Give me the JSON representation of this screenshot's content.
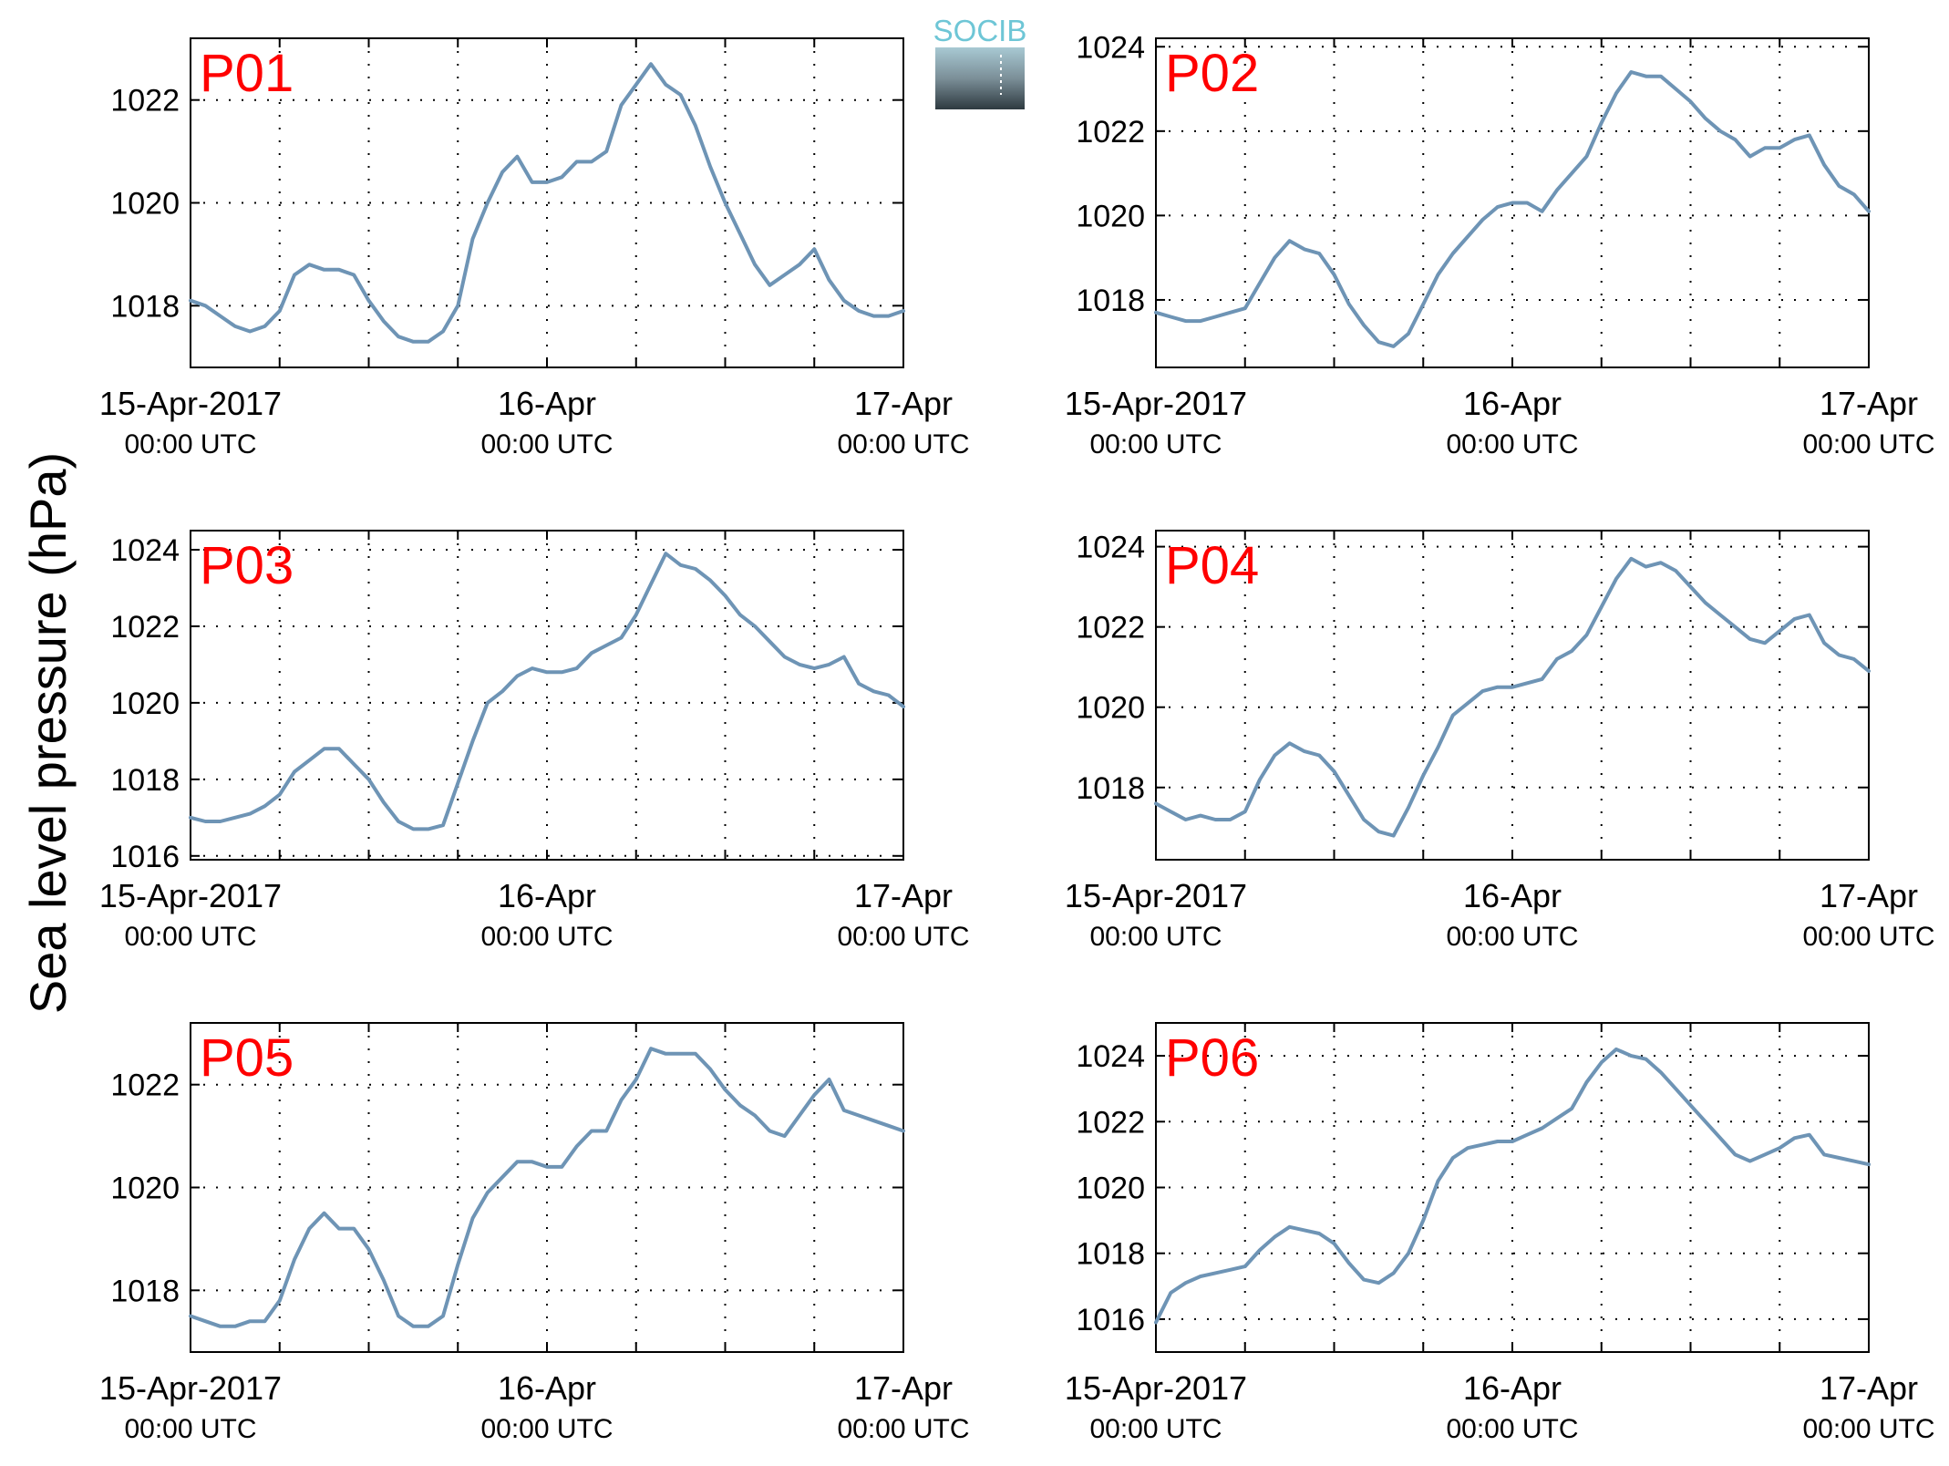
{
  "ylabel": "Sea level pressure (hPa)",
  "logo": {
    "text": "SOCIB",
    "accent": "#6ec6d6"
  },
  "colors": {
    "line": "#6e94b5",
    "label": "#ff0000",
    "grid": "#000000"
  },
  "x_ticks": [
    {
      "x": 0,
      "date": "15-Apr-2017",
      "time": "00:00 UTC"
    },
    {
      "x": 24,
      "date": "16-Apr",
      "time": "00:00 UTC"
    },
    {
      "x": 48,
      "date": "17-Apr",
      "time": "00:00 UTC"
    }
  ],
  "chart_data": [
    {
      "type": "line",
      "label": "P01",
      "xlim": [
        0,
        48
      ],
      "ylim": [
        1016.8,
        1023.2
      ],
      "yticks": [
        1018,
        1020,
        1022
      ],
      "grid": true,
      "series": [
        {
          "x": [
            0,
            1,
            2,
            3,
            4,
            5,
            6,
            7,
            8,
            9,
            10,
            11,
            12,
            13,
            14,
            15,
            16,
            17,
            18,
            19,
            20,
            21,
            22,
            23,
            24,
            25,
            26,
            27,
            28,
            29,
            30,
            31,
            32,
            33,
            34,
            35,
            36,
            37,
            38,
            39,
            40,
            41,
            42,
            43,
            44,
            45,
            46,
            47,
            48
          ],
          "y": [
            1018.1,
            1018.0,
            1017.8,
            1017.6,
            1017.5,
            1017.6,
            1017.9,
            1018.6,
            1018.8,
            1018.7,
            1018.7,
            1018.6,
            1018.1,
            1017.7,
            1017.4,
            1017.3,
            1017.3,
            1017.5,
            1018.0,
            1019.3,
            1020.0,
            1020.6,
            1020.9,
            1020.4,
            1020.4,
            1020.5,
            1020.8,
            1020.8,
            1021.0,
            1021.9,
            1022.3,
            1022.7,
            1022.3,
            1022.1,
            1021.5,
            1020.7,
            1020.0,
            1019.4,
            1018.8,
            1018.4,
            1018.6,
            1018.8,
            1019.1,
            1018.5,
            1018.1,
            1017.9,
            1017.8,
            1017.8,
            1017.9
          ]
        }
      ]
    },
    {
      "type": "line",
      "label": "P02",
      "xlim": [
        0,
        48
      ],
      "ylim": [
        1016.4,
        1024.2
      ],
      "yticks": [
        1018,
        1020,
        1022,
        1024
      ],
      "grid": true,
      "series": [
        {
          "x": [
            0,
            1,
            2,
            3,
            4,
            5,
            6,
            7,
            8,
            9,
            10,
            11,
            12,
            13,
            14,
            15,
            16,
            17,
            18,
            19,
            20,
            21,
            22,
            23,
            24,
            25,
            26,
            27,
            28,
            29,
            30,
            31,
            32,
            33,
            34,
            35,
            36,
            37,
            38,
            39,
            40,
            41,
            42,
            43,
            44,
            45,
            46,
            47,
            48
          ],
          "y": [
            1017.7,
            1017.6,
            1017.5,
            1017.5,
            1017.6,
            1017.7,
            1017.8,
            1018.4,
            1019.0,
            1019.4,
            1019.2,
            1019.1,
            1018.6,
            1017.9,
            1017.4,
            1017.0,
            1016.9,
            1017.2,
            1017.9,
            1018.6,
            1019.1,
            1019.5,
            1019.9,
            1020.2,
            1020.3,
            1020.3,
            1020.1,
            1020.6,
            1021.0,
            1021.4,
            1022.2,
            1022.9,
            1023.4,
            1023.3,
            1023.3,
            1023.0,
            1022.7,
            1022.3,
            1022.0,
            1021.8,
            1021.4,
            1021.6,
            1021.6,
            1021.8,
            1021.9,
            1021.2,
            1020.7,
            1020.5,
            1020.1
          ]
        }
      ]
    },
    {
      "type": "line",
      "label": "P03",
      "xlim": [
        0,
        48
      ],
      "ylim": [
        1015.9,
        1024.5
      ],
      "yticks": [
        1016,
        1018,
        1020,
        1022,
        1024
      ],
      "grid": true,
      "series": [
        {
          "x": [
            0,
            1,
            2,
            3,
            4,
            5,
            6,
            7,
            8,
            9,
            10,
            11,
            12,
            13,
            14,
            15,
            16,
            17,
            18,
            19,
            20,
            21,
            22,
            23,
            24,
            25,
            26,
            27,
            28,
            29,
            30,
            31,
            32,
            33,
            34,
            35,
            36,
            37,
            38,
            39,
            40,
            41,
            42,
            43,
            44,
            45,
            46,
            47,
            48
          ],
          "y": [
            1017.0,
            1016.9,
            1016.9,
            1017.0,
            1017.1,
            1017.3,
            1017.6,
            1018.2,
            1018.5,
            1018.8,
            1018.8,
            1018.4,
            1018.0,
            1017.4,
            1016.9,
            1016.7,
            1016.7,
            1016.8,
            1017.9,
            1019.0,
            1020.0,
            1020.3,
            1020.7,
            1020.9,
            1020.8,
            1020.8,
            1020.9,
            1021.3,
            1021.5,
            1021.7,
            1022.3,
            1023.1,
            1023.9,
            1023.6,
            1023.5,
            1023.2,
            1022.8,
            1022.3,
            1022.0,
            1021.6,
            1021.2,
            1021.0,
            1020.9,
            1021.0,
            1021.2,
            1020.5,
            1020.3,
            1020.2,
            1019.9
          ]
        }
      ]
    },
    {
      "type": "line",
      "label": "P04",
      "xlim": [
        0,
        48
      ],
      "ylim": [
        1016.2,
        1024.4
      ],
      "yticks": [
        1018,
        1020,
        1022,
        1024
      ],
      "grid": true,
      "series": [
        {
          "x": [
            0,
            1,
            2,
            3,
            4,
            5,
            6,
            7,
            8,
            9,
            10,
            11,
            12,
            13,
            14,
            15,
            16,
            17,
            18,
            19,
            20,
            21,
            22,
            23,
            24,
            25,
            26,
            27,
            28,
            29,
            30,
            31,
            32,
            33,
            34,
            35,
            36,
            37,
            38,
            39,
            40,
            41,
            42,
            43,
            44,
            45,
            46,
            47,
            48
          ],
          "y": [
            1017.6,
            1017.4,
            1017.2,
            1017.3,
            1017.2,
            1017.2,
            1017.4,
            1018.2,
            1018.8,
            1019.1,
            1018.9,
            1018.8,
            1018.4,
            1017.8,
            1017.2,
            1016.9,
            1016.8,
            1017.5,
            1018.3,
            1019.0,
            1019.8,
            1020.1,
            1020.4,
            1020.5,
            1020.5,
            1020.6,
            1020.7,
            1021.2,
            1021.4,
            1021.8,
            1022.5,
            1023.2,
            1023.7,
            1023.5,
            1023.6,
            1023.4,
            1023.0,
            1022.6,
            1022.3,
            1022.0,
            1021.7,
            1021.6,
            1021.9,
            1022.2,
            1022.3,
            1021.6,
            1021.3,
            1021.2,
            1020.9
          ]
        }
      ]
    },
    {
      "type": "line",
      "label": "P05",
      "xlim": [
        0,
        48
      ],
      "ylim": [
        1016.8,
        1023.2
      ],
      "yticks": [
        1018,
        1020,
        1022
      ],
      "grid": true,
      "series": [
        {
          "x": [
            0,
            1,
            2,
            3,
            4,
            5,
            6,
            7,
            8,
            9,
            10,
            11,
            12,
            13,
            14,
            15,
            16,
            17,
            18,
            19,
            20,
            21,
            22,
            23,
            24,
            25,
            26,
            27,
            28,
            29,
            30,
            31,
            32,
            33,
            34,
            35,
            36,
            37,
            38,
            39,
            40,
            41,
            42,
            43,
            44,
            45,
            46,
            47,
            48
          ],
          "y": [
            1017.5,
            1017.4,
            1017.3,
            1017.3,
            1017.4,
            1017.4,
            1017.8,
            1018.6,
            1019.2,
            1019.5,
            1019.2,
            1019.2,
            1018.8,
            1018.2,
            1017.5,
            1017.3,
            1017.3,
            1017.5,
            1018.5,
            1019.4,
            1019.9,
            1020.2,
            1020.5,
            1020.5,
            1020.4,
            1020.4,
            1020.8,
            1021.1,
            1021.1,
            1021.7,
            1022.1,
            1022.7,
            1022.6,
            1022.6,
            1022.6,
            1022.3,
            1021.9,
            1021.6,
            1021.4,
            1021.1,
            1021.0,
            1021.4,
            1021.8,
            1022.1,
            1021.5,
            1021.4,
            1021.3,
            1021.2,
            1021.1
          ]
        }
      ]
    },
    {
      "type": "line",
      "label": "P06",
      "xlim": [
        0,
        48
      ],
      "ylim": [
        1015.0,
        1025.0
      ],
      "yticks": [
        1016,
        1018,
        1020,
        1022,
        1024
      ],
      "grid": true,
      "series": [
        {
          "x": [
            0,
            1,
            2,
            3,
            4,
            5,
            6,
            7,
            8,
            9,
            10,
            11,
            12,
            13,
            14,
            15,
            16,
            17,
            18,
            19,
            20,
            21,
            22,
            23,
            24,
            25,
            26,
            27,
            28,
            29,
            30,
            31,
            32,
            33,
            34,
            35,
            36,
            37,
            38,
            39,
            40,
            41,
            42,
            43,
            44,
            45,
            46,
            47,
            48
          ],
          "y": [
            1015.9,
            1016.8,
            1017.1,
            1017.3,
            1017.4,
            1017.5,
            1017.6,
            1018.1,
            1018.5,
            1018.8,
            1018.7,
            1018.6,
            1018.3,
            1017.7,
            1017.2,
            1017.1,
            1017.4,
            1018.0,
            1019.0,
            1020.2,
            1020.9,
            1021.2,
            1021.3,
            1021.4,
            1021.4,
            1021.6,
            1021.8,
            1022.1,
            1022.4,
            1023.2,
            1023.8,
            1024.2,
            1024.0,
            1023.9,
            1023.5,
            1023.0,
            1022.5,
            1022.0,
            1021.5,
            1021.0,
            1020.8,
            1021.0,
            1021.2,
            1021.5,
            1021.6,
            1021.0,
            1020.9,
            1020.8,
            1020.7
          ]
        }
      ]
    }
  ]
}
